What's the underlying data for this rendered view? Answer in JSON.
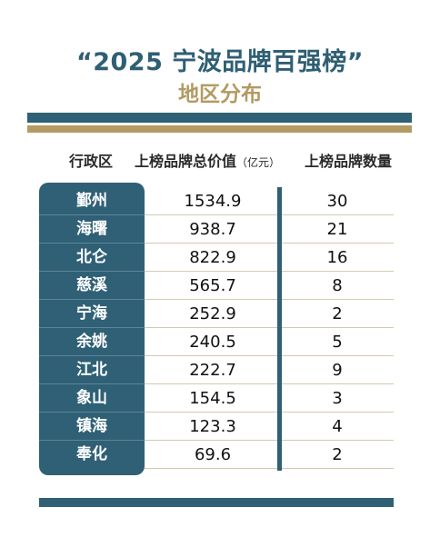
{
  "title": "“2025 宁波品牌百强榜”",
  "subtitle": "地区分布",
  "headers": {
    "region": "行政区",
    "value": "上榜品牌总价值",
    "value_unit": "（亿元）",
    "count": "上榜品牌数量"
  },
  "rows": [
    {
      "region": "鄞州",
      "value": "1534.9",
      "count": "30"
    },
    {
      "region": "海曙",
      "value": "938.7",
      "count": "21"
    },
    {
      "region": "北仑",
      "value": "822.9",
      "count": "16"
    },
    {
      "region": "慈溪",
      "value": "565.7",
      "count": "8"
    },
    {
      "region": "宁海",
      "value": "252.9",
      "count": "2"
    },
    {
      "region": "余姚",
      "value": "240.5",
      "count": "5"
    },
    {
      "region": "江北",
      "value": "222.7",
      "count": "9"
    },
    {
      "region": "象山",
      "value": "154.5",
      "count": "3"
    },
    {
      "region": "镇海",
      "value": "123.3",
      "count": "4"
    },
    {
      "region": "奉化",
      "value": "69.6",
      "count": "2"
    }
  ],
  "colors": {
    "primary_blue": "#2f6075",
    "accent_gold": "#b49b63"
  }
}
